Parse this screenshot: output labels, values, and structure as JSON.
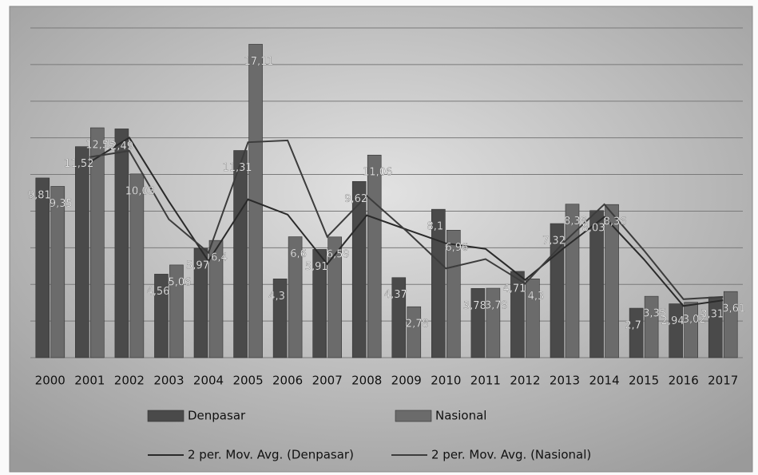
{
  "chart_data": {
    "type": "bar",
    "categories": [
      "2000",
      "2001",
      "2002",
      "2003",
      "2004",
      "2005",
      "2006",
      "2007",
      "2008",
      "2009",
      "2010",
      "2011",
      "2012",
      "2013",
      "2014",
      "2015",
      "2016",
      "2017"
    ],
    "series": [
      {
        "name": "Denpasar",
        "color": "#4a4a4a",
        "values": [
          9.81,
          11.52,
          12.49,
          4.56,
          5.97,
          11.31,
          4.3,
          5.91,
          9.62,
          4.37,
          8.1,
          3.78,
          4.71,
          7.32,
          8.03,
          2.7,
          2.94,
          3.31
        ],
        "value_labels": [
          "9,81",
          "11,52",
          "12,49",
          "4,56",
          "5,97",
          "11,31",
          "4,3",
          "5,91",
          "9,62",
          "4,37",
          "8,1",
          "3,78",
          "4,71",
          "7,32",
          "8,03",
          "2,7",
          "2,94",
          "3,31"
        ]
      },
      {
        "name": "Nasional",
        "color": "#6b6b6b",
        "values": [
          9.35,
          12.55,
          10.03,
          5.06,
          6.4,
          17.11,
          6.6,
          6.59,
          11.06,
          2.78,
          6.96,
          3.79,
          4.3,
          8.38,
          8.36,
          3.35,
          3.02,
          3.61
        ],
        "value_labels": [
          "9,35",
          "12,55",
          "10,03",
          "5,06",
          "6,4",
          "17,11",
          "6,6",
          "6,59",
          "11,06",
          "2,78",
          "6,96",
          "3,79",
          "4,3",
          "8,38",
          "8,36",
          "3,35",
          "3,02",
          "3,61"
        ]
      },
      {
        "name": "2 per. Mov. Avg. (Denpasar)",
        "type": "line",
        "color": "#2a2a2a",
        "values": [
          null,
          10.67,
          12.01,
          8.53,
          5.27,
          8.64,
          7.81,
          5.11,
          7.77,
          7.0,
          6.24,
          5.94,
          4.25,
          6.02,
          7.68,
          5.37,
          2.82,
          3.13
        ]
      },
      {
        "name": "2 per. Mov. Avg. (Nasional)",
        "type": "line",
        "color": "#3c3c3c",
        "values": [
          null,
          10.95,
          11.29,
          7.55,
          5.73,
          11.76,
          11.86,
          6.6,
          8.83,
          6.92,
          4.87,
          5.38,
          4.05,
          6.34,
          8.37,
          5.86,
          3.19,
          3.32
        ]
      }
    ],
    "ylim": [
      0,
      18
    ],
    "yticks": [
      0,
      2,
      4,
      6,
      8,
      10,
      12,
      14,
      16,
      18
    ],
    "grid": true
  }
}
